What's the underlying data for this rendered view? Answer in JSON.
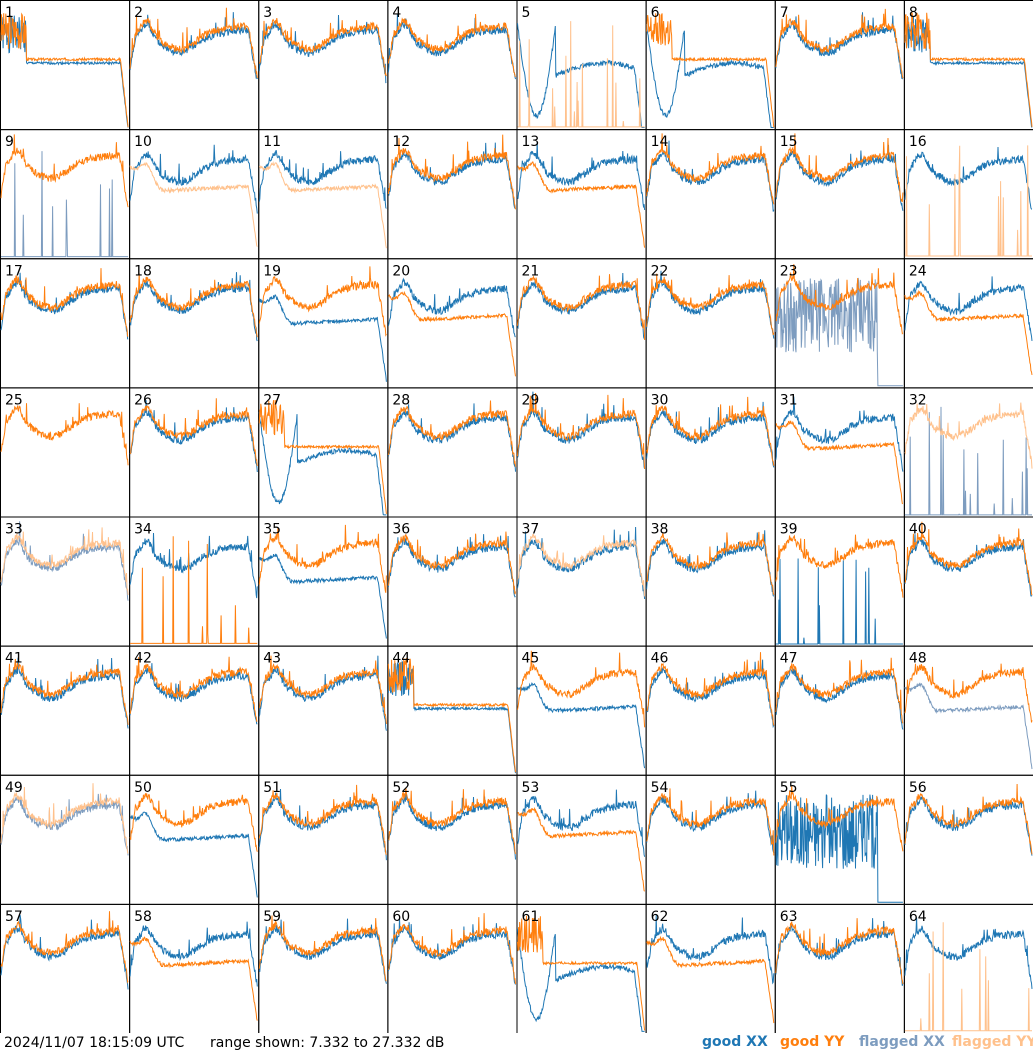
{
  "chart_data": {
    "type": "line",
    "title": "",
    "layout": "8x8 grid of per-antenna spectra",
    "timestamp": "2024/11/07 18:15:09 UTC",
    "range_text": "range shown: 7.332 to 27.332 dB",
    "ylim": [
      7.332,
      27.332
    ],
    "legend": [
      {
        "label": "good XX",
        "color": "#1f77b4"
      },
      {
        "label": "good YY",
        "color": "#ff7f0e"
      },
      {
        "label": "flagged XX",
        "color": "#7d9cbf"
      },
      {
        "label": "flagged YY",
        "color": "#ffc18c"
      }
    ],
    "panels": [
      {
        "label": "1",
        "xx": "flat",
        "yy": "flat",
        "xx_flagged": false,
        "yy_flagged": false
      },
      {
        "label": "2",
        "xx": "normal",
        "yy": "normal",
        "xx_flagged": false,
        "yy_flagged": false
      },
      {
        "label": "3",
        "xx": "normal",
        "yy": "normal",
        "xx_flagged": false,
        "yy_flagged": false
      },
      {
        "label": "4",
        "xx": "normal",
        "yy": "normal",
        "xx_flagged": false,
        "yy_flagged": false
      },
      {
        "label": "5",
        "xx": "dip",
        "yy": "dead",
        "xx_flagged": false,
        "yy_flagged": true
      },
      {
        "label": "6",
        "xx": "dip",
        "yy": "flat",
        "xx_flagged": false,
        "yy_flagged": false
      },
      {
        "label": "7",
        "xx": "normal",
        "yy": "normal",
        "xx_flagged": false,
        "yy_flagged": false
      },
      {
        "label": "8",
        "xx": "flat",
        "yy": "flat",
        "xx_flagged": false,
        "yy_flagged": false
      },
      {
        "label": "9",
        "xx": "dead",
        "yy": "normal",
        "xx_flagged": true,
        "yy_flagged": false
      },
      {
        "label": "10",
        "xx": "normal",
        "yy": "low",
        "xx_flagged": false,
        "yy_flagged": true
      },
      {
        "label": "11",
        "xx": "normal",
        "yy": "low",
        "xx_flagged": false,
        "yy_flagged": true
      },
      {
        "label": "12",
        "xx": "normal",
        "yy": "normal",
        "xx_flagged": false,
        "yy_flagged": false
      },
      {
        "label": "13",
        "xx": "normal",
        "yy": "low",
        "xx_flagged": false,
        "yy_flagged": false
      },
      {
        "label": "14",
        "xx": "normal",
        "yy": "normal",
        "xx_flagged": false,
        "yy_flagged": false
      },
      {
        "label": "15",
        "xx": "normal",
        "yy": "normal",
        "xx_flagged": false,
        "yy_flagged": false
      },
      {
        "label": "16",
        "xx": "normal",
        "yy": "dead",
        "xx_flagged": false,
        "yy_flagged": true
      },
      {
        "label": "17",
        "xx": "normal",
        "yy": "normal",
        "xx_flagged": false,
        "yy_flagged": false
      },
      {
        "label": "18",
        "xx": "normal",
        "yy": "normal",
        "xx_flagged": false,
        "yy_flagged": false
      },
      {
        "label": "19",
        "xx": "low",
        "yy": "normal",
        "xx_flagged": false,
        "yy_flagged": false
      },
      {
        "label": "20",
        "xx": "normal",
        "yy": "low",
        "xx_flagged": false,
        "yy_flagged": false
      },
      {
        "label": "21",
        "xx": "normal",
        "yy": "normal",
        "xx_flagged": false,
        "yy_flagged": false
      },
      {
        "label": "22",
        "xx": "normal",
        "yy": "normal",
        "xx_flagged": false,
        "yy_flagged": false
      },
      {
        "label": "23",
        "xx": "noise",
        "yy": "normal",
        "xx_flagged": true,
        "yy_flagged": false
      },
      {
        "label": "24",
        "xx": "normal",
        "yy": "low",
        "xx_flagged": false,
        "yy_flagged": false
      },
      {
        "label": "25",
        "xx": "none",
        "yy": "normal",
        "xx_flagged": false,
        "yy_flagged": false
      },
      {
        "label": "26",
        "xx": "normal",
        "yy": "normal",
        "xx_flagged": false,
        "yy_flagged": false
      },
      {
        "label": "27",
        "xx": "dip",
        "yy": "flat",
        "xx_flagged": false,
        "yy_flagged": false
      },
      {
        "label": "28",
        "xx": "normal",
        "yy": "normal",
        "xx_flagged": false,
        "yy_flagged": false
      },
      {
        "label": "29",
        "xx": "normal",
        "yy": "normal",
        "xx_flagged": false,
        "yy_flagged": false
      },
      {
        "label": "30",
        "xx": "normal",
        "yy": "normal",
        "xx_flagged": false,
        "yy_flagged": false
      },
      {
        "label": "31",
        "xx": "normal",
        "yy": "low",
        "xx_flagged": false,
        "yy_flagged": false
      },
      {
        "label": "32",
        "xx": "dead",
        "yy": "normal",
        "xx_flagged": true,
        "yy_flagged": true
      },
      {
        "label": "33",
        "xx": "normal",
        "yy": "normal",
        "xx_flagged": true,
        "yy_flagged": true
      },
      {
        "label": "34",
        "xx": "normal",
        "yy": "dead",
        "xx_flagged": false,
        "yy_flagged": false
      },
      {
        "label": "35",
        "xx": "low",
        "yy": "normal",
        "xx_flagged": false,
        "yy_flagged": false
      },
      {
        "label": "36",
        "xx": "normal",
        "yy": "normal",
        "xx_flagged": false,
        "yy_flagged": false
      },
      {
        "label": "37",
        "xx": "normal",
        "yy": "normal",
        "xx_flagged": false,
        "yy_flagged": true
      },
      {
        "label": "38",
        "xx": "normal",
        "yy": "normal",
        "xx_flagged": false,
        "yy_flagged": false
      },
      {
        "label": "39",
        "xx": "dead",
        "yy": "normal",
        "xx_flagged": false,
        "yy_flagged": false
      },
      {
        "label": "40",
        "xx": "normal",
        "yy": "normal",
        "xx_flagged": false,
        "yy_flagged": false
      },
      {
        "label": "41",
        "xx": "normal",
        "yy": "normal",
        "xx_flagged": false,
        "yy_flagged": false
      },
      {
        "label": "42",
        "xx": "normal",
        "yy": "normal",
        "xx_flagged": false,
        "yy_flagged": false
      },
      {
        "label": "43",
        "xx": "normal",
        "yy": "normal",
        "xx_flagged": false,
        "yy_flagged": false
      },
      {
        "label": "44",
        "xx": "flat",
        "yy": "flat",
        "xx_flagged": false,
        "yy_flagged": false
      },
      {
        "label": "45",
        "xx": "low",
        "yy": "normal",
        "xx_flagged": false,
        "yy_flagged": false
      },
      {
        "label": "46",
        "xx": "normal",
        "yy": "normal",
        "xx_flagged": false,
        "yy_flagged": false
      },
      {
        "label": "47",
        "xx": "normal",
        "yy": "normal",
        "xx_flagged": false,
        "yy_flagged": false
      },
      {
        "label": "48",
        "xx": "low",
        "yy": "normal",
        "xx_flagged": true,
        "yy_flagged": false
      },
      {
        "label": "49",
        "xx": "normal",
        "yy": "normal",
        "xx_flagged": true,
        "yy_flagged": true
      },
      {
        "label": "50",
        "xx": "low",
        "yy": "normal",
        "xx_flagged": false,
        "yy_flagged": false
      },
      {
        "label": "51",
        "xx": "normal",
        "yy": "normal",
        "xx_flagged": false,
        "yy_flagged": false
      },
      {
        "label": "52",
        "xx": "normal",
        "yy": "normal",
        "xx_flagged": false,
        "yy_flagged": false
      },
      {
        "label": "53",
        "xx": "normal",
        "yy": "low",
        "xx_flagged": false,
        "yy_flagged": false
      },
      {
        "label": "54",
        "xx": "normal",
        "yy": "normal",
        "xx_flagged": false,
        "yy_flagged": false
      },
      {
        "label": "55",
        "xx": "noise",
        "yy": "normal",
        "xx_flagged": false,
        "yy_flagged": false
      },
      {
        "label": "56",
        "xx": "normal",
        "yy": "normal",
        "xx_flagged": false,
        "yy_flagged": false
      },
      {
        "label": "57",
        "xx": "normal",
        "yy": "normal",
        "xx_flagged": false,
        "yy_flagged": false
      },
      {
        "label": "58",
        "xx": "normal",
        "yy": "low",
        "xx_flagged": false,
        "yy_flagged": false
      },
      {
        "label": "59",
        "xx": "normal",
        "yy": "normal",
        "xx_flagged": false,
        "yy_flagged": false
      },
      {
        "label": "60",
        "xx": "normal",
        "yy": "normal",
        "xx_flagged": false,
        "yy_flagged": false
      },
      {
        "label": "61",
        "xx": "dip",
        "yy": "flat",
        "xx_flagged": false,
        "yy_flagged": false
      },
      {
        "label": "62",
        "xx": "normal",
        "yy": "low",
        "xx_flagged": false,
        "yy_flagged": false
      },
      {
        "label": "63",
        "xx": "normal",
        "yy": "normal",
        "xx_flagged": false,
        "yy_flagged": false
      },
      {
        "label": "64",
        "xx": "normal",
        "yy": "dead",
        "xx_flagged": false,
        "yy_flagged": true
      }
    ]
  }
}
